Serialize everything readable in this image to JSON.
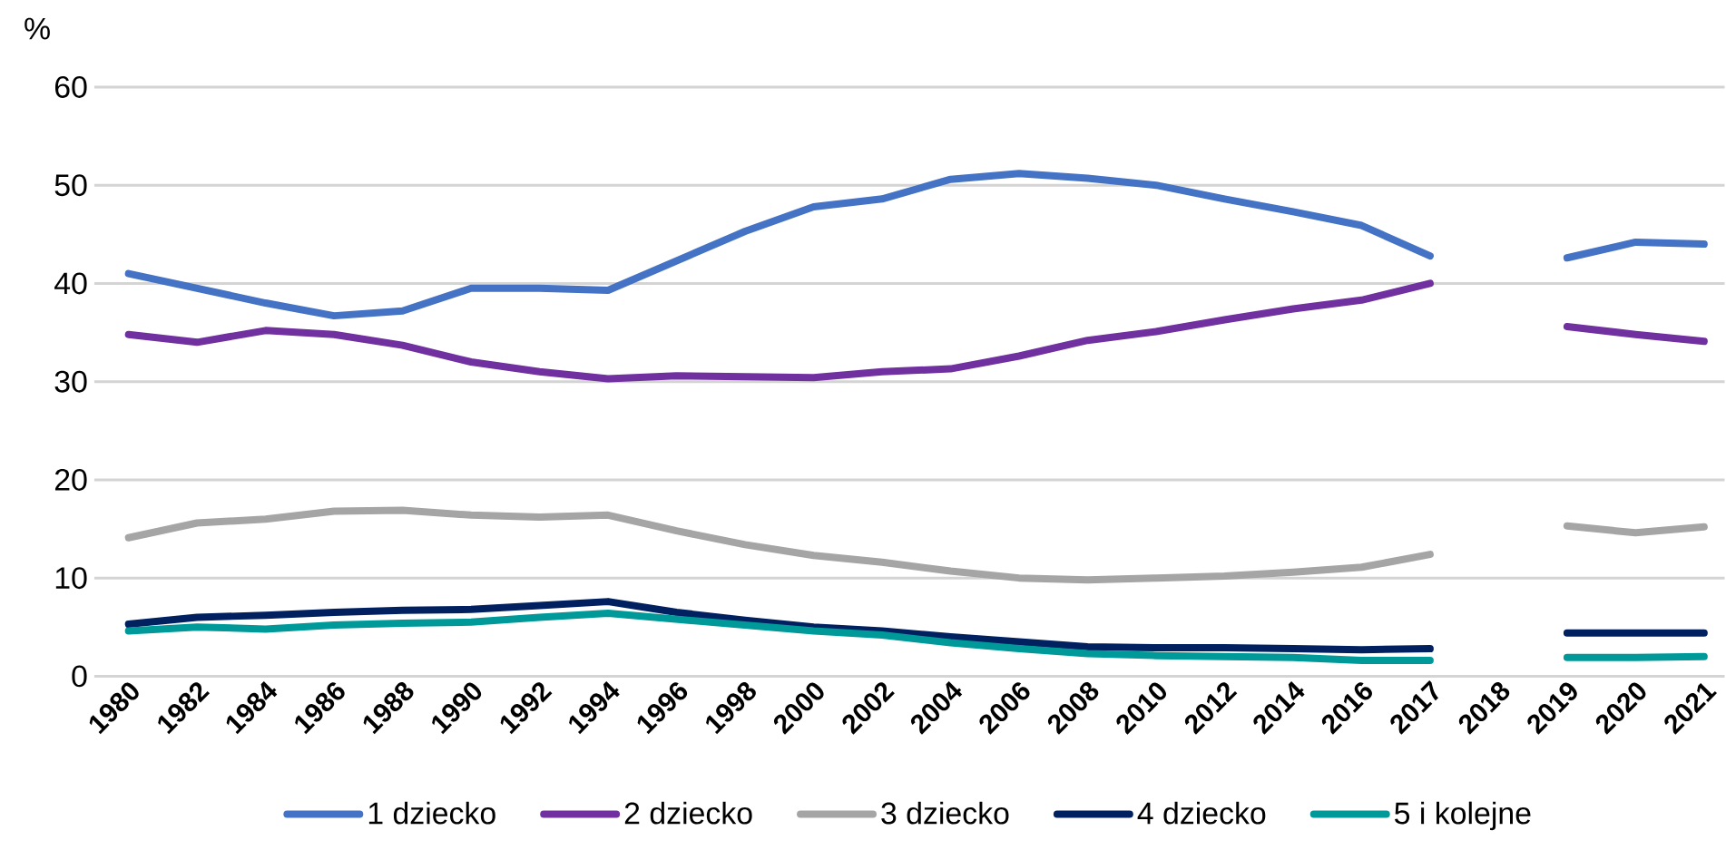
{
  "chart_data": {
    "type": "line",
    "ylabel": "%",
    "categories": [
      "1980",
      "1982",
      "1984",
      "1986",
      "1988",
      "1990",
      "1992",
      "1994",
      "1996",
      "1998",
      "2000",
      "2002",
      "2004",
      "2006",
      "2008",
      "2010",
      "2012",
      "2014",
      "2016",
      "2017",
      "2018",
      "2019",
      "2020",
      "2021"
    ],
    "series": [
      {
        "name": "1 dziecko",
        "color": "#4472c4",
        "values": [
          41,
          39.5,
          38,
          36.7,
          37.2,
          39.5,
          39.5,
          39.3,
          42.3,
          45.3,
          47.8,
          48.6,
          50.6,
          51.2,
          50.7,
          50,
          48.6,
          47.3,
          45.9,
          42.8,
          null,
          42.6,
          44.2,
          44.0
        ]
      },
      {
        "name": "2 dziecko",
        "color": "#7030a0",
        "values": [
          34.8,
          34.0,
          35.2,
          34.8,
          33.7,
          32.0,
          31.0,
          30.3,
          30.6,
          30.5,
          30.4,
          31.0,
          31.3,
          32.6,
          34.2,
          35.1,
          36.3,
          37.4,
          38.3,
          40.0,
          null,
          35.6,
          34.8,
          34.1
        ]
      },
      {
        "name": "3 dziecko",
        "color": "#a5a5a5",
        "values": [
          14.1,
          15.6,
          16.0,
          16.8,
          16.9,
          16.4,
          16.2,
          16.4,
          14.8,
          13.4,
          12.3,
          11.6,
          10.7,
          10.0,
          9.8,
          10.0,
          10.2,
          10.6,
          11.1,
          12.4,
          null,
          15.3,
          14.6,
          15.2
        ]
      },
      {
        "name": "4 dziecko",
        "color": "#002060",
        "values": [
          5.3,
          6.0,
          6.2,
          6.5,
          6.7,
          6.8,
          7.2,
          7.6,
          6.5,
          5.7,
          5.0,
          4.6,
          4.0,
          3.5,
          3.0,
          2.9,
          2.9,
          2.8,
          2.7,
          2.8,
          null,
          4.4,
          4.4,
          4.4
        ]
      },
      {
        "name": "5 i kolejne",
        "color": "#009999",
        "values": [
          4.6,
          5.0,
          4.8,
          5.2,
          5.4,
          5.5,
          6.0,
          6.4,
          5.8,
          5.2,
          4.6,
          4.2,
          3.4,
          2.8,
          2.3,
          2.1,
          2.0,
          1.9,
          1.6,
          1.6,
          null,
          1.9,
          1.9,
          2.0
        ]
      }
    ],
    "ylim": [
      0,
      60
    ],
    "yticks": [
      0,
      10,
      20,
      30,
      40,
      50,
      60
    ],
    "grid": "y",
    "legend": "bottom",
    "marker": "none",
    "line_style": "solid"
  }
}
